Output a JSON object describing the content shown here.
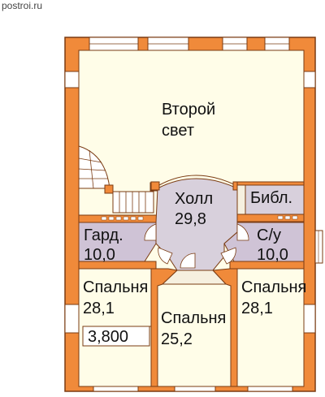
{
  "watermark": "postroi.ru",
  "colors": {
    "wall": "#f08a3a",
    "wall_stroke": "#7a3b12",
    "interior_wall": "#f6f0df",
    "bathroom_fill": "#cfc3d6",
    "hall_fill": "#d8d0dc",
    "bedroom_fill": "#fffde8",
    "window": "#ffffff",
    "stairs": "#ffffff"
  },
  "rooms": [
    {
      "id": "second-light",
      "name_line1": "Второй",
      "name_line2": "свет"
    },
    {
      "id": "hall",
      "name": "Холл",
      "area": "29,8"
    },
    {
      "id": "library",
      "name": "Библ."
    },
    {
      "id": "wardrobe",
      "name": "Гард.",
      "area": "10,0"
    },
    {
      "id": "bathroom",
      "name": "С/у",
      "area": "10,0"
    },
    {
      "id": "bedroom-left",
      "name": "Спальня",
      "area": "28,1"
    },
    {
      "id": "bedroom-center",
      "name": "Спальня",
      "area": "25,2"
    },
    {
      "id": "bedroom-right",
      "name": "Спальня",
      "area": "28,1"
    }
  ],
  "ceiling_height": "3,800"
}
